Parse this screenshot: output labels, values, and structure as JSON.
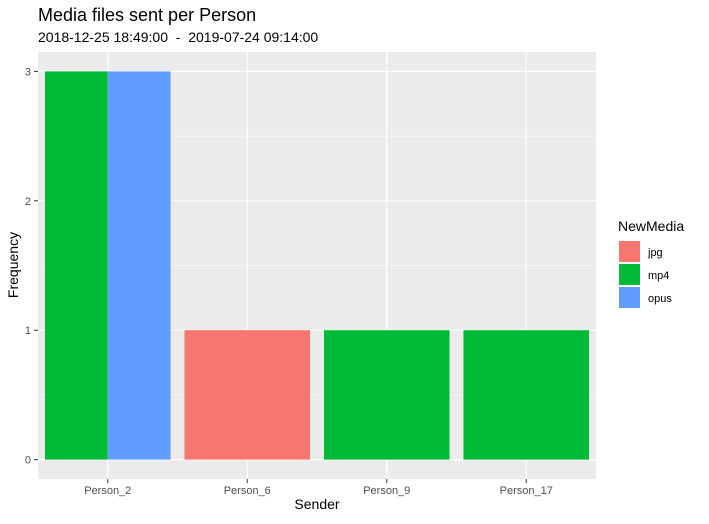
{
  "chart_data": {
    "type": "bar",
    "title": "Media files sent per Person",
    "subtitle": "2018-12-25 18:49:00  -  2019-07-24 09:14:00",
    "xlabel": "Sender",
    "ylabel": "Frequency",
    "categories": [
      "Person_2",
      "Person_6",
      "Person_9",
      "Person_17"
    ],
    "yticks": [
      0,
      1,
      2,
      3
    ],
    "ylim": [
      0,
      3
    ],
    "grid": true,
    "legend": {
      "title": "NewMedia",
      "placement": "right",
      "entries": [
        {
          "name": "jpg",
          "color": "#F8766D"
        },
        {
          "name": "mp4",
          "color": "#00BA38"
        },
        {
          "name": "opus",
          "color": "#619CFF"
        }
      ]
    },
    "bars": [
      {
        "category": "Person_2",
        "media": "mp4",
        "value": 3
      },
      {
        "category": "Person_2",
        "media": "opus",
        "value": 3
      },
      {
        "category": "Person_6",
        "media": "jpg",
        "value": 1
      },
      {
        "category": "Person_9",
        "media": "mp4",
        "value": 1
      },
      {
        "category": "Person_17",
        "media": "mp4",
        "value": 1
      }
    ],
    "colors": {
      "panel_background": "#EBEBEB",
      "gridline": "#FFFFFF",
      "text": "#000000",
      "tick_text": "#4D4D4D"
    }
  }
}
